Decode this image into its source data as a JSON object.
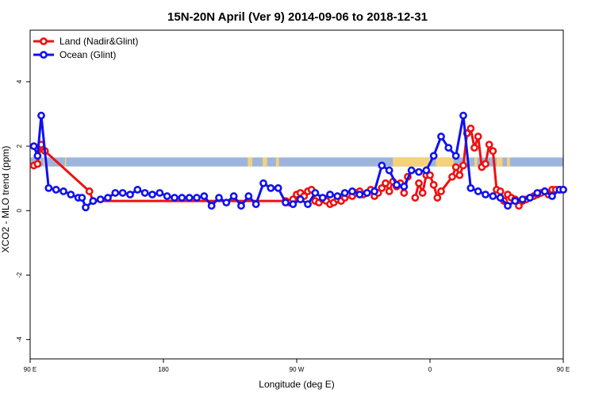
{
  "chart_data": {
    "type": "line",
    "title": "15N-20N April (Ver 9)   2014-09-06 to 2018-12-31",
    "xlabel": "Longitude (deg E)",
    "ylabel": "XCO2 - MLO trend (ppm)",
    "xlim": [
      90,
      450
    ],
    "ylim": [
      -4.6,
      5.6
    ],
    "x_ticks": [
      {
        "value": 90,
        "label": "90 E"
      },
      {
        "value": 180,
        "label": "180"
      },
      {
        "value": 270,
        "label": "90 W"
      },
      {
        "value": 360,
        "label": "0"
      },
      {
        "value": 450,
        "label": "90 E"
      },
      {
        "value": 540,
        "label": "180"
      }
    ],
    "y_ticks": [
      -4,
      -2,
      0,
      2,
      4
    ],
    "legend_position": "top-left",
    "land_band": {
      "y_range": [
        1.37,
        1.65
      ],
      "ocean_color": "#9db5dc",
      "land_color": "#f5d27a"
    },
    "series": [
      {
        "name": "Land (Nadir&Glint)",
        "color": "#ee1111",
        "x": [
          92.5,
          95,
          97.5,
          100,
          130,
          132.5,
          262.5,
          265,
          267.5,
          270,
          272.5,
          275,
          277.5,
          280,
          282.5,
          285,
          287.5,
          290,
          292.5,
          295,
          297.5,
          300,
          302.5,
          305,
          307.5,
          310,
          312.5,
          315,
          317.5,
          320,
          322.5,
          325,
          327.5,
          330,
          332.5,
          335,
          337.5,
          340,
          342.5,
          345,
          347.5,
          350,
          352.5,
          355,
          357.5,
          360,
          362.5,
          365,
          367.5,
          375,
          377.5,
          380,
          382.5,
          385,
          387.5,
          390,
          392.5,
          395,
          397.5,
          400,
          402.5,
          405,
          407.5,
          410,
          412.5,
          415,
          417.5,
          420,
          422.5,
          425,
          427.5,
          430,
          432.5,
          435,
          437.5,
          440,
          442.5,
          445,
          447.5,
          450
        ],
        "values": [
          1.4,
          1.45,
          2.05,
          1.85,
          0.6,
          0.3,
          0.3,
          0.25,
          0.35,
          0.5,
          0.55,
          0.45,
          0.6,
          0.65,
          0.3,
          0.25,
          0.35,
          0.3,
          0.2,
          0.25,
          0.35,
          0.3,
          0.4,
          0.5,
          0.45,
          0.55,
          0.6,
          0.5,
          0.55,
          0.65,
          0.45,
          0.55,
          0.7,
          0.85,
          0.6,
          0.9,
          0.75,
          0.85,
          0.55,
          1.05,
          null,
          0.4,
          0.85,
          0.55,
          1.1,
          1.1,
          0.8,
          0.4,
          0.6,
          1.05,
          1.35,
          1.1,
          1.4,
          2.4,
          2.55,
          1.95,
          2.3,
          1.35,
          1.45,
          2.05,
          1.85,
          0.65,
          0.6,
          0.3,
          0.5,
          0.4,
          0.35,
          0.15,
          0.3,
          0.35,
          0.4,
          0.45,
          0.5,
          0.55,
          0.6,
          0.5,
          0.65,
          0.65,
          0.65,
          0.65
        ]
      },
      {
        "name": "Ocean (Glint)",
        "color": "#1111ee",
        "x": [
          92.5,
          95,
          97.5,
          102.5,
          107.5,
          112.5,
          117.5,
          122.5,
          125,
          127.5,
          132.5,
          137.5,
          142.5,
          147.5,
          152.5,
          157.5,
          162.5,
          167.5,
          172.5,
          177.5,
          182.5,
          187.5,
          192.5,
          197.5,
          202.5,
          207.5,
          212.5,
          217.5,
          222.5,
          227.5,
          232.5,
          237.5,
          242.5,
          247.5,
          252.5,
          257.5,
          262.5,
          267.5,
          272.5,
          277.5,
          282.5,
          287.5,
          292.5,
          297.5,
          302.5,
          307.5,
          312.5,
          317.5,
          322.5,
          327.5,
          332.5,
          337.5,
          342.5,
          347.5,
          352.5,
          357.5,
          362.5,
          367.5,
          372.5,
          377.5,
          382.5,
          387.5,
          392.5,
          397.5,
          402.5,
          407.5,
          412.5,
          417.5,
          422.5,
          427.5,
          432.5,
          437.5,
          442.5,
          447.5,
          450
        ],
        "values": [
          2.0,
          1.7,
          2.95,
          0.7,
          0.65,
          0.6,
          0.5,
          0.4,
          0.4,
          0.1,
          0.3,
          0.35,
          0.4,
          0.55,
          0.55,
          0.5,
          0.65,
          0.55,
          0.5,
          0.55,
          0.45,
          0.4,
          0.4,
          0.4,
          0.4,
          0.45,
          0.15,
          0.4,
          0.25,
          0.45,
          0.15,
          0.45,
          0.2,
          0.85,
          0.7,
          0.7,
          0.25,
          0.2,
          0.35,
          0.2,
          0.55,
          0.4,
          0.5,
          0.45,
          0.55,
          0.6,
          0.5,
          0.55,
          0.6,
          1.4,
          1.25,
          0.8,
          0.75,
          1.25,
          1.2,
          1.25,
          1.7,
          2.3,
          1.95,
          1.7,
          2.95,
          0.7,
          0.6,
          0.5,
          0.45,
          0.4,
          0.15,
          0.3,
          0.35,
          0.4,
          0.55,
          0.6,
          0.45,
          0.65,
          0.65
        ]
      }
    ]
  }
}
